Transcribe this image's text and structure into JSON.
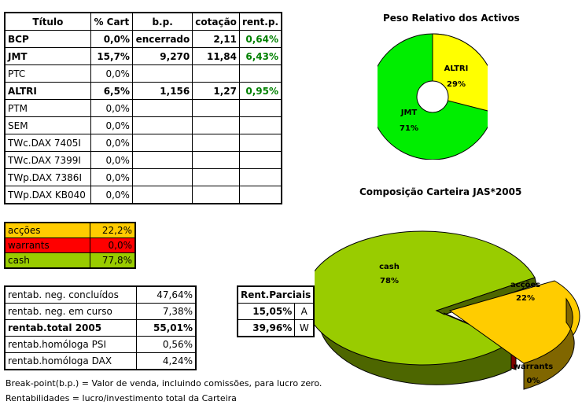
{
  "holdings": {
    "headers": [
      "Título",
      "% Cart",
      "b.p.",
      "cotação",
      "rent.p."
    ],
    "rows": [
      {
        "titulo": "BCP",
        "cart": "0,0%",
        "bp": "encerrado",
        "cot": "2,11",
        "rent": "0,64%",
        "bold": true
      },
      {
        "titulo": "JMT",
        "cart": "15,7%",
        "bp": "9,270",
        "cot": "11,84",
        "rent": "6,43%",
        "bold": true
      },
      {
        "titulo": "PTC",
        "cart": "0,0%",
        "bp": "",
        "cot": "",
        "rent": "",
        "bold": false
      },
      {
        "titulo": "ALTRI",
        "cart": "6,5%",
        "bp": "1,156",
        "cot": "1,27",
        "rent": "0,95%",
        "bold": true
      },
      {
        "titulo": "PTM",
        "cart": "0,0%",
        "bp": "",
        "cot": "",
        "rent": "",
        "bold": false
      },
      {
        "titulo": "SEM",
        "cart": "0,0%",
        "bp": "",
        "cot": "",
        "rent": "",
        "bold": false
      },
      {
        "titulo": "TWc.DAX 7405I",
        "cart": "0,0%",
        "bp": "",
        "cot": "",
        "rent": "",
        "bold": false
      },
      {
        "titulo": "TWc.DAX 7399I",
        "cart": "0,0%",
        "bp": "",
        "cot": "",
        "rent": "",
        "bold": false
      },
      {
        "titulo": "TWp.DAX 7386I",
        "cart": "0,0%",
        "bp": "",
        "cot": "",
        "rent": "",
        "bold": false
      },
      {
        "titulo": "TWp.DAX KB040",
        "cart": "0,0%",
        "bp": "",
        "cot": "",
        "rent": "",
        "bold": false
      }
    ]
  },
  "allocation": [
    {
      "label": "acções",
      "value": "22,2%",
      "color": "#ffcc00"
    },
    {
      "label": "warrants",
      "value": "0,0%",
      "color": "#ff0000"
    },
    {
      "label": "cash",
      "value": "77,8%",
      "color": "#99cc00"
    }
  ],
  "returns": [
    {
      "label": "rentab. neg. concluídos",
      "value": "47,64%",
      "bold": false
    },
    {
      "label": "rentab. neg. em curso",
      "value": "7,38%",
      "bold": false
    },
    {
      "label": "rentab.total 2005",
      "value": "55,01%",
      "bold": true
    },
    {
      "label": "rentab.homóloga PSI",
      "value": "0,56%",
      "bold": false
    },
    {
      "label": "rentab.homóloga DAX",
      "value": "4,24%",
      "bold": false
    }
  ],
  "partial": {
    "header": "Rent.Parciais",
    "rows": [
      {
        "value": "15,05%",
        "tag": "A"
      },
      {
        "value": "39,96%",
        "tag": "W"
      }
    ]
  },
  "notes": [
    "Break-point(b.p.) = Valor de venda, incluindo comissões, para lucro zero.",
    "Rentabilidades = lucro/investimento total da Carteira"
  ],
  "chart_data": [
    {
      "type": "pie",
      "title": "Peso Relativo dos Activos",
      "categories": [
        "ALTRI",
        "JMT"
      ],
      "values": [
        29,
        71
      ],
      "labels": [
        "29%",
        "71%"
      ],
      "colors": [
        "#ffff00",
        "#00ee00"
      ],
      "donut": true
    },
    {
      "type": "pie",
      "title": "Composição Carteira JAS*2005",
      "categories": [
        "cash",
        "acções",
        "warrants"
      ],
      "values": [
        78,
        22,
        0
      ],
      "labels": [
        "78%",
        "22%",
        "0%"
      ],
      "colors": [
        "#99cc00",
        "#ffcc00",
        "#800000"
      ],
      "style": "3d-exploded"
    }
  ]
}
